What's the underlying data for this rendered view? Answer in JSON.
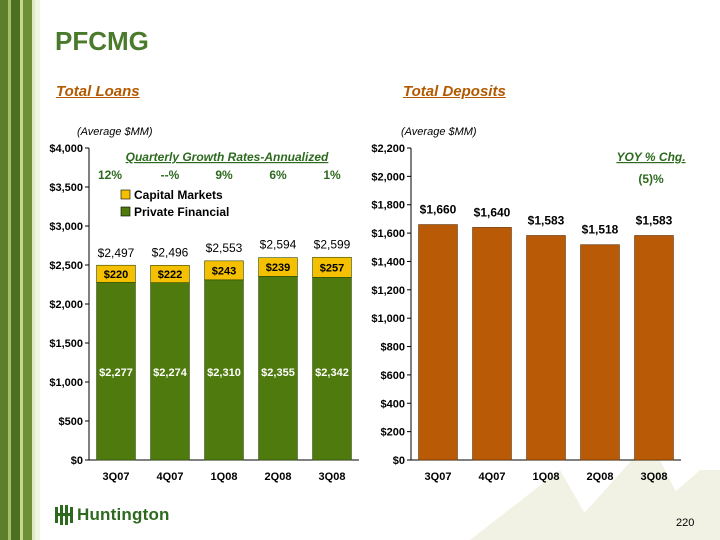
{
  "page_title": "PFCMG",
  "page_number": "220",
  "logo_text": "Huntington",
  "colors": {
    "green_dark": "#4a7a2c",
    "orange": "#b35a00",
    "gold": "#f5c000",
    "pf_green": "#4f7a0e",
    "deposit_bar": "#b85a06"
  },
  "chart_data": [
    {
      "type": "bar",
      "stacked": true,
      "title": "Total Loans",
      "subtitle": "(Average $MM)",
      "categories": [
        "3Q07",
        "4Q07",
        "1Q08",
        "2Q08",
        "3Q08"
      ],
      "series": [
        {
          "name": "Private Financial",
          "values": [
            2277,
            2274,
            2310,
            2355,
            2342
          ],
          "labels": [
            "$2,277",
            "$2,274",
            "$2,310",
            "$2,355",
            "$2,342"
          ]
        },
        {
          "name": "Capital Markets",
          "values": [
            220,
            222,
            243,
            239,
            257
          ],
          "labels": [
            "$220",
            "$222",
            "$243",
            "$239",
            "$257"
          ]
        }
      ],
      "totals": [
        "$2,497",
        "$2,496",
        "$2,553",
        "$2,594",
        "$2,599"
      ],
      "ylim": [
        0,
        4000
      ],
      "yticks": [
        0,
        500,
        1000,
        1500,
        2000,
        2500,
        3000,
        3500,
        4000
      ],
      "ytick_labels": [
        "$0",
        "$500",
        "$1,000",
        "$1,500",
        "$2,000",
        "$2,500",
        "$3,000",
        "$3,500",
        "$4,000"
      ],
      "legend_position": "top-left",
      "legend": [
        "Capital Markets",
        "Private Financial"
      ],
      "annotation_title": "Quarterly Growth Rates-Annualized",
      "growth_rates": [
        "12%",
        "--%",
        "9%",
        "6%",
        "1%"
      ]
    },
    {
      "type": "bar",
      "title": "Total Deposits",
      "subtitle": "(Average $MM)",
      "categories": [
        "3Q07",
        "4Q07",
        "1Q08",
        "2Q08",
        "3Q08"
      ],
      "values": [
        1660,
        1640,
        1583,
        1518,
        1583
      ],
      "labels": [
        "$1,660",
        "$1,640",
        "$1,583",
        "$1,518",
        "$1,583"
      ],
      "ylim": [
        0,
        2200
      ],
      "yticks": [
        0,
        200,
        400,
        600,
        800,
        1000,
        1200,
        1400,
        1600,
        1800,
        2000,
        2200
      ],
      "ytick_labels": [
        "$0",
        "$200",
        "$400",
        "$600",
        "$800",
        "$1,000",
        "$1,200",
        "$1,400",
        "$1,600",
        "$1,800",
        "$2,000",
        "$2,200"
      ],
      "annotation_title": "YOY % Chg.",
      "annotation_value": "(5)%"
    }
  ]
}
